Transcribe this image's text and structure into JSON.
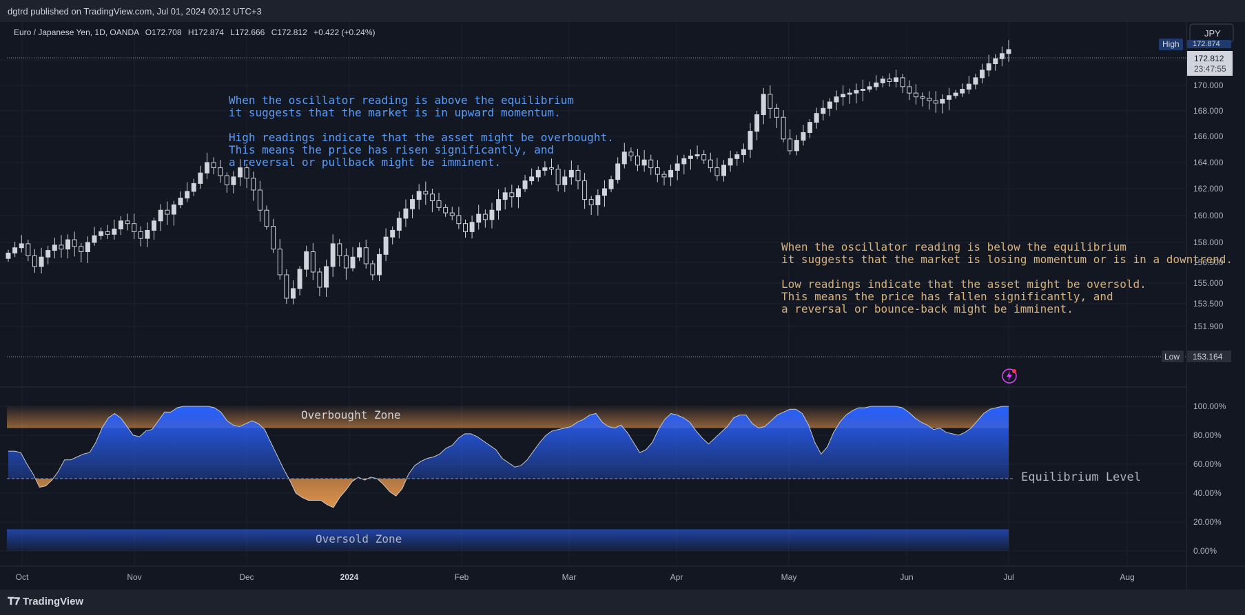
{
  "header": {
    "published": "dgtrd published on TradingView.com, Jul 01, 2024 00:12 UTC+3"
  },
  "legend": {
    "symbol": "Euro / Japanese Yen, 1D, OANDA",
    "o_label": "O",
    "o": "172.708",
    "h_label": "H",
    "h": "172.874",
    "l_label": "L",
    "l": "172.666",
    "c_label": "C",
    "c": "172.812",
    "change": "+0.422 (+0.24%)"
  },
  "currency_button": "JPY",
  "brand": "TradingView",
  "price_tags": {
    "high_label": "High",
    "high_value": "172.874",
    "last_value": "172.812",
    "countdown": "23:47:55",
    "low_label": "Low",
    "low_value": "153.164"
  },
  "colors": {
    "background": "#131722",
    "candle": "#d1d4dc",
    "oscillator_blue": "#2962ff",
    "oscillator_orange": "#f7a150",
    "note_blue": "#5b9cf6",
    "note_orange": "#d8b27a"
  },
  "annotations": {
    "upper_note": [
      "When the oscillator reading is above the equilibrium",
      "it suggests that the market is in upward momentum.",
      "",
      "High readings indicate that the asset might be overbought.",
      "This means the price has risen significantly, and",
      "a reversal or pullback might be imminent."
    ],
    "lower_note": [
      "When the oscillator reading is below the equilibrium",
      "it suggests that the market is losing momentum or is in a downtrend.",
      "",
      "Low readings indicate that the asset might be oversold.",
      "This means the price has fallen significantly, and",
      "a reversal or bounce-back might be imminent."
    ],
    "overbought": "Overbought Zone",
    "oversold": "Oversold Zone",
    "equilibrium": "Equilibrium Level"
  },
  "chart_data": [
    {
      "type": "candlestick",
      "title": "Euro / Japanese Yen, 1D, OANDA",
      "x_ticks": [
        "Oct",
        "Nov",
        "Dec",
        "2024",
        "Feb",
        "Mar",
        "Apr",
        "May",
        "Jun",
        "Jul",
        "Aug"
      ],
      "y_ticks": [
        "151.900",
        "153.500",
        "155.000",
        "156.500",
        "158.000",
        "160.000",
        "162.000",
        "164.000",
        "166.000",
        "168.000",
        "170.000",
        "172.000"
      ],
      "y_tick_values": [
        151.9,
        153.5,
        155.0,
        156.5,
        158.0,
        160.0,
        162.0,
        164.0,
        166.0,
        168.0,
        170.0,
        172.0
      ],
      "high": 172.874,
      "low": 153.164,
      "last": 172.812,
      "closes": [
        157.2,
        157.6,
        157.9,
        157.0,
        156.2,
        156.9,
        157.4,
        157.8,
        157.5,
        158.2,
        157.7,
        157.3,
        158.0,
        158.5,
        158.8,
        158.6,
        159.0,
        159.6,
        159.4,
        158.8,
        158.3,
        158.9,
        159.6,
        160.4,
        160.1,
        160.8,
        161.3,
        161.8,
        162.4,
        163.2,
        164.0,
        163.6,
        163.0,
        162.3,
        162.9,
        163.6,
        162.8,
        161.9,
        160.4,
        159.2,
        157.5,
        155.6,
        153.9,
        154.6,
        156.0,
        157.3,
        155.8,
        154.7,
        156.2,
        157.9,
        157.0,
        156.1,
        156.9,
        157.6,
        156.4,
        155.6,
        157.1,
        158.4,
        158.9,
        159.8,
        160.5,
        161.2,
        161.8,
        161.6,
        161.1,
        160.6,
        160.2,
        160.0,
        159.4,
        158.8,
        159.5,
        160.1,
        159.7,
        160.4,
        161.2,
        161.7,
        161.4,
        162.0,
        162.6,
        162.9,
        163.4,
        163.6,
        163.5,
        162.3,
        162.9,
        163.4,
        162.6,
        161.2,
        160.8,
        161.5,
        162.0,
        162.7,
        163.9,
        164.8,
        164.5,
        163.8,
        164.2,
        163.6,
        163.1,
        162.9,
        163.4,
        163.9,
        164.3,
        164.5,
        164.6,
        164.2,
        163.6,
        163.0,
        163.8,
        164.3,
        164.6,
        165.0,
        166.4,
        167.7,
        169.3,
        168.2,
        167.5,
        165.8,
        164.9,
        165.7,
        166.3,
        167.1,
        167.8,
        168.2,
        168.7,
        169.1,
        169.3,
        169.4,
        169.6,
        169.7,
        169.9,
        170.2,
        170.5,
        170.3,
        170.6,
        169.9,
        169.4,
        169.1,
        169.0,
        168.8,
        168.6,
        168.9,
        169.2,
        169.4,
        169.7,
        170.1,
        170.6,
        171.2,
        171.7,
        172.1,
        172.5,
        172.812
      ]
    },
    {
      "type": "area",
      "title": "",
      "y_ticks": [
        "0.00%",
        "20.00%",
        "40.00%",
        "60.00%",
        "80.00%",
        "100.00%"
      ],
      "ylim": [
        0,
        100
      ],
      "overbought_zone": [
        85,
        100
      ],
      "oversold_zone": [
        0,
        15
      ],
      "equilibrium": 50,
      "values": [
        69,
        69,
        68,
        60,
        53,
        44,
        45,
        49,
        55,
        63,
        63,
        65,
        67,
        68,
        75,
        85,
        92,
        95,
        92,
        86,
        80,
        79,
        83,
        84,
        90,
        96,
        96,
        99,
        100,
        100,
        100,
        100,
        100,
        99,
        96,
        90,
        87,
        86,
        88,
        90,
        88,
        84,
        75,
        66,
        57,
        49,
        40,
        37,
        35,
        35,
        35,
        32,
        30,
        37,
        42,
        48,
        51,
        49,
        51,
        50,
        46,
        41,
        38,
        43,
        53,
        59,
        62,
        64,
        65,
        67,
        71,
        73,
        78,
        81,
        81,
        79,
        76,
        73,
        70,
        64,
        61,
        58,
        59,
        63,
        69,
        75,
        80,
        83,
        84,
        85,
        86,
        89,
        91,
        94,
        95,
        89,
        86,
        85,
        87,
        82,
        75,
        68,
        70,
        75,
        84,
        91,
        95,
        94,
        92,
        89,
        83,
        78,
        74,
        78,
        82,
        86,
        92,
        94,
        94,
        88,
        85,
        86,
        90,
        94,
        96,
        98,
        98,
        95,
        87,
        75,
        67,
        72,
        82,
        89,
        94,
        97,
        99,
        99,
        100,
        100,
        100,
        100,
        100,
        99,
        96,
        92,
        89,
        87,
        84,
        85,
        82,
        81,
        80,
        82,
        85,
        90,
        95,
        98,
        99,
        100,
        100
      ]
    }
  ]
}
